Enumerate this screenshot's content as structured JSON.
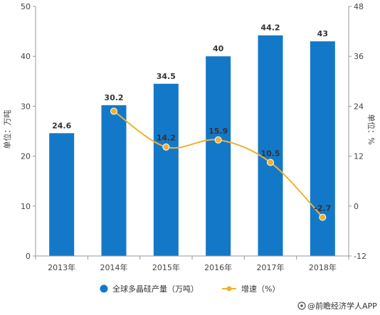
{
  "chart_data": {
    "type": "bar",
    "categories": [
      "2013年",
      "2014年",
      "2015年",
      "2016年",
      "2017年",
      "2018年"
    ],
    "series": [
      {
        "name": "全球多晶硅产量（万吨）",
        "type": "bar",
        "axis": "left",
        "values": [
          24.6,
          30.2,
          34.5,
          40,
          44.2,
          43
        ],
        "color": "#1478c8"
      },
      {
        "name": "增速（%）",
        "type": "line",
        "axis": "right",
        "values": [
          null,
          22.8,
          14.2,
          15.9,
          10.5,
          -2.7
        ],
        "labels": [
          "",
          "",
          "14.2",
          "15.9",
          "10.5",
          "-2.7"
        ],
        "color": "#f0b030"
      }
    ],
    "ylabel_left": "单位：万吨",
    "ylabel_right": "单位：%",
    "ylim_left": [
      0,
      50
    ],
    "yticks_left": [
      0,
      10,
      20,
      30,
      40,
      50
    ],
    "ylim_right": [
      -12,
      48
    ],
    "yticks_right": [
      -12,
      0,
      12,
      24,
      36,
      48
    ],
    "grid": false,
    "legend": "bottom"
  },
  "source": "@前瞻经济学人APP"
}
